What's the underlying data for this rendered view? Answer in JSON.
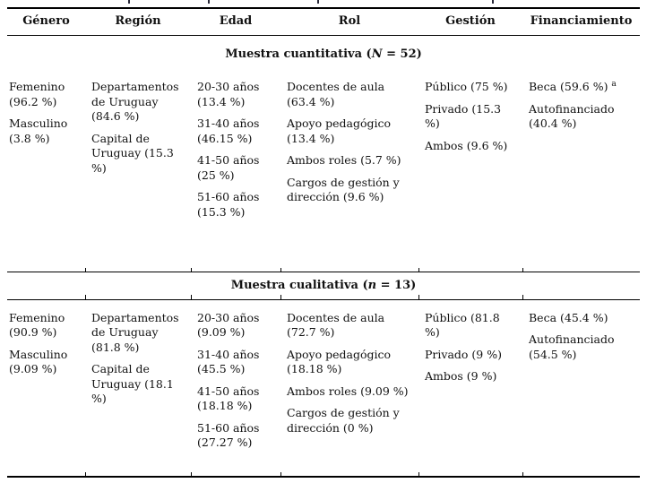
{
  "table": {
    "headers": [
      "Género",
      "Región",
      "Edad",
      "Rol",
      "Gestión",
      "Financiamiento"
    ],
    "sections": [
      {
        "id": "cuantitativa",
        "title": {
          "pre": "Muestra cuantitativa (",
          "var": "N",
          "post": " = 52)"
        },
        "columns": [
          [
            "Femenino (96.2 %)",
            "Masculino (3.8 %)"
          ],
          [
            "Departamentos de Uruguay (84.6 %)",
            "Capital de Uruguay (15.3 %)"
          ],
          [
            "20-30 años (13.4 %)",
            "31-40 años (46.15 %)",
            "41-50 años (25 %)",
            "51-60 años (15.3 %)"
          ],
          [
            "Docentes de aula (63.4 %)",
            "Apoyo pedagógico (13.4 %)",
            "Ambos roles (5.7 %)",
            "Cargos de gestión y dirección (9.6 %)"
          ],
          [
            "Público (75 %)",
            "Privado (15.3 %)",
            "Ambos (9.6 %)"
          ],
          [
            {
              "text": "Beca (59.6 %)",
              "sup": "a"
            },
            "Autofinanciado (40.4 %)"
          ]
        ]
      },
      {
        "id": "cualitativa",
        "title": {
          "pre": "Muestra cualitativa (",
          "var": "n",
          "post": " = 13)"
        },
        "columns": [
          [
            "Femenino (90.9 %)",
            "Masculino (9.09 %)"
          ],
          [
            "Departamentos de Uruguay (81.8 %)",
            "Capital de Uruguay (18.1 %)"
          ],
          [
            "20-30 años (9.09 %)",
            "31-40 años (45.5 %)",
            "41-50 años (18.18 %)",
            "51-60 años (27.27 %)"
          ],
          [
            "Docentes de aula (72.7 %)",
            "Apoyo pedagógico (18.18 %)",
            "Ambos roles (9.09 %)",
            "Cargos de gestión y dirección (0 %)"
          ],
          [
            "Público (81.8 %)",
            "Privado (9 %)",
            "Ambos (9 %)"
          ],
          [
            "Beca (45.4 %)",
            "Autofinanciado (54.5 %)"
          ]
        ]
      }
    ]
  }
}
